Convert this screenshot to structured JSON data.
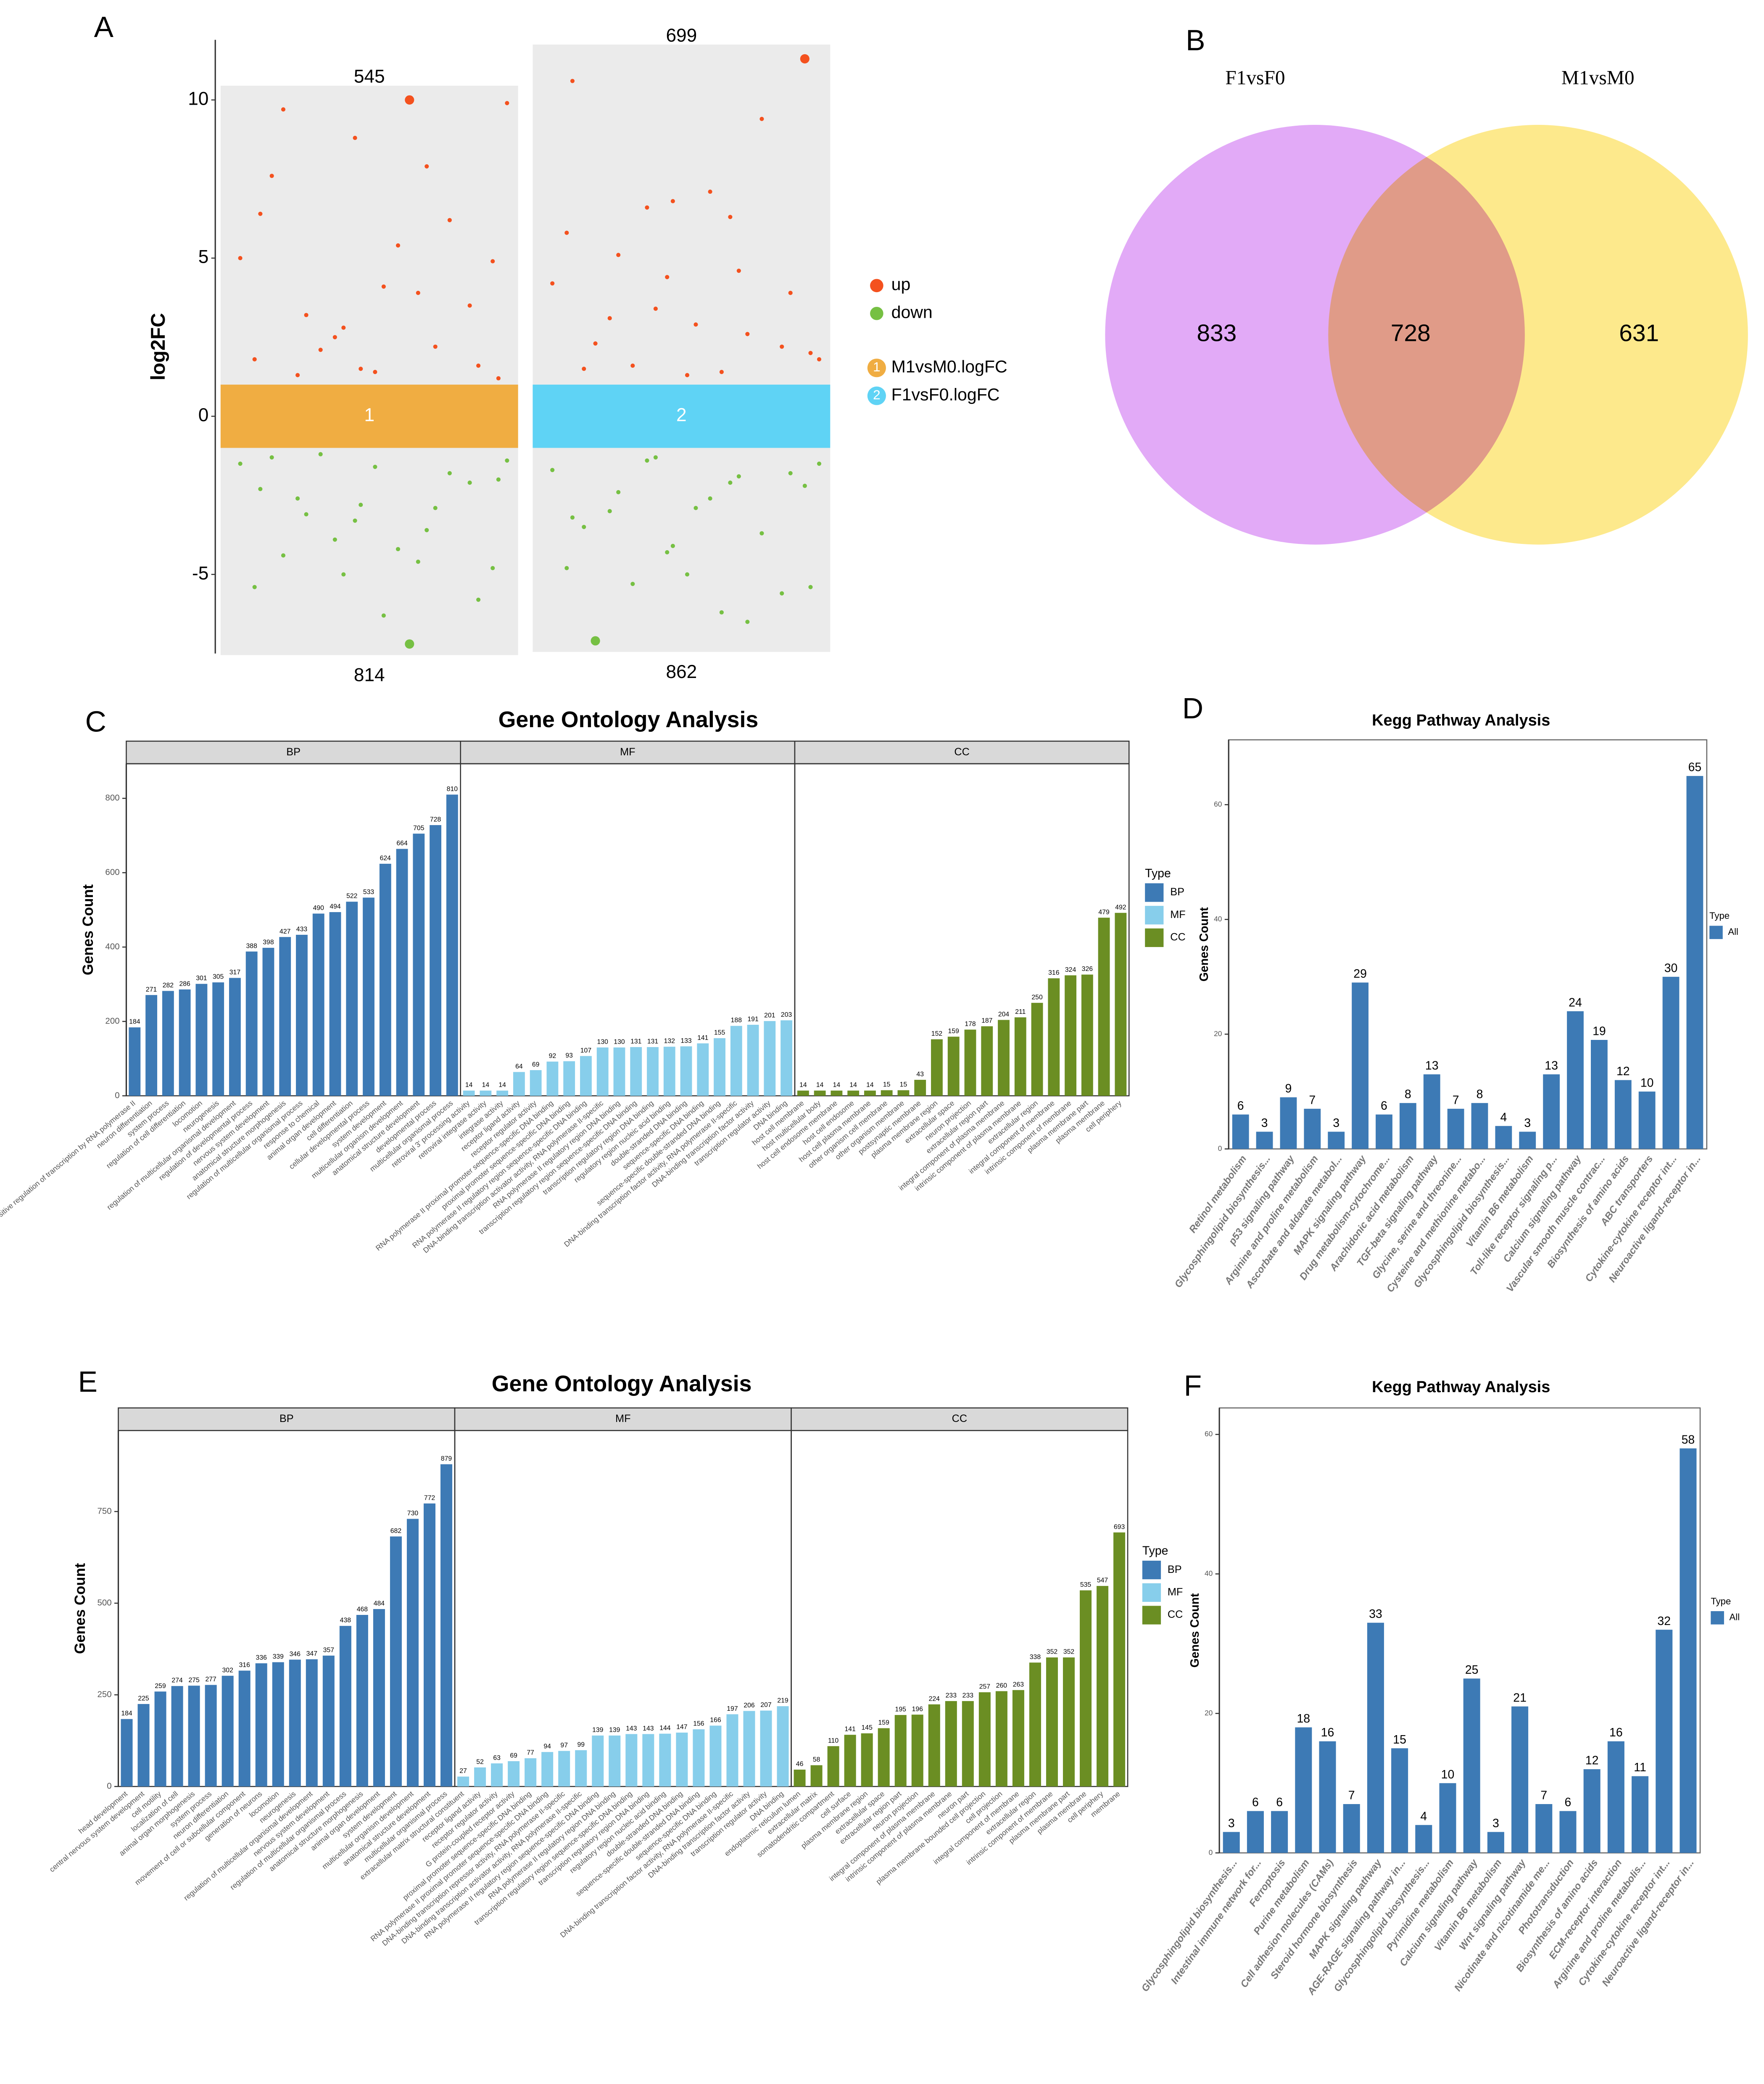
{
  "chart_data": [
    {
      "panel": "A",
      "type": "jitter",
      "ylabel": "log2FC",
      "ylim": [
        -7.5,
        11.9
      ],
      "yticks": [
        -5,
        0,
        5,
        10
      ],
      "band_range": [
        -1,
        1
      ],
      "legend": [
        {
          "name": "up",
          "color": "#f4511e"
        },
        {
          "name": "down",
          "color": "#76c043"
        }
      ],
      "groups": [
        {
          "name": "M1vsM0.logFC",
          "label": "1",
          "color": "#f0ad42",
          "up_count": 545,
          "down_count": 814,
          "x": [
            0.05,
            0.12,
            0.2,
            0.28,
            0.33,
            0.41,
            0.47,
            0.55,
            0.64,
            0.7,
            0.78,
            0.85,
            0.93,
            0.98,
            0.1,
            0.25,
            0.38,
            0.52,
            0.6,
            0.73,
            0.88,
            0.16,
            0.45,
            0.67,
            0.95
          ],
          "up": [
            5,
            6.4,
            9.7,
            3.2,
            2.1,
            2.8,
            1.5,
            4.1,
            10,
            7.9,
            6.2,
            3.5,
            4.9,
            9.9,
            1.8,
            1.3,
            2.5,
            1.4,
            5.4,
            2.2,
            1.6,
            7.6,
            8.8,
            3.9,
            1.2
          ],
          "down": [
            -1.5,
            -2.3,
            -4.4,
            -3.1,
            -1.2,
            -5,
            -2.8,
            -6.3,
            -7.2,
            -3.6,
            -1.8,
            -2.1,
            -4.8,
            -1.4,
            -5.4,
            -2.6,
            -3.9,
            -1.6,
            -4.2,
            -2.9,
            -5.8,
            -1.3,
            -3.3,
            -4.6,
            -2
          ]
        },
        {
          "name": "F1vsF0.logFC",
          "label": "2",
          "color": "#5fd3f5",
          "up_count": 699,
          "down_count": 862,
          "x": [
            0.05,
            0.12,
            0.2,
            0.28,
            0.33,
            0.41,
            0.47,
            0.55,
            0.64,
            0.7,
            0.78,
            0.85,
            0.93,
            0.98,
            0.1,
            0.25,
            0.38,
            0.52,
            0.6,
            0.73,
            0.88,
            0.16,
            0.45,
            0.67,
            0.95
          ],
          "up": [
            4.2,
            10.6,
            2.3,
            5.1,
            1.6,
            3.4,
            6.8,
            2.9,
            1.4,
            4.6,
            9.4,
            2.2,
            11.3,
            1.8,
            5.8,
            3.1,
            6.6,
            1.3,
            7.1,
            2.6,
            3.9,
            1.5,
            4.4,
            6.3,
            2
          ],
          "down": [
            -1.7,
            -3.2,
            -7.1,
            -2.4,
            -5.3,
            -1.3,
            -4.1,
            -2.9,
            -6.2,
            -1.9,
            -3.7,
            -5.6,
            -2.2,
            -1.5,
            -4.8,
            -3,
            -1.4,
            -5,
            -2.6,
            -6.5,
            -1.8,
            -3.5,
            -4.3,
            -2.1,
            -5.4
          ]
        }
      ]
    },
    {
      "panel": "B",
      "type": "venn",
      "sets": [
        {
          "name": "F1vsF0",
          "color": "#e2aaf7"
        },
        {
          "name": "M1vsM0",
          "color": "#fde98c"
        }
      ],
      "values": [
        833,
        728,
        631
      ]
    },
    {
      "panel": "C",
      "type": "faceted_bar",
      "title": "Gene Ontology Analysis",
      "ylabel": "Genes Count",
      "ylim": [
        0,
        893
      ],
      "yticks": [
        0,
        200,
        400,
        600,
        800
      ],
      "legend_title": "Type",
      "facets": [
        {
          "name": "BP",
          "color": "#3d7ab5",
          "categories": [
            "positive regulation of transcription by RNA polymerase II",
            "neuron differentiation",
            "system process",
            "regulation of cell differentiation",
            "locomotion",
            "neurogenesis",
            "regulation of multicellular organismal development",
            "regulation of developmental process",
            "nervous system development",
            "anatomical structure morphogenesis",
            "regulation of multicellular organismal process",
            "response to chemical",
            "animal organ development",
            "cell differentiation",
            "cellular developmental process",
            "system development",
            "multicellular organism development",
            "anatomical structure development",
            "developmental process",
            "multicellular organismal process"
          ],
          "values": [
            184,
            271,
            282,
            286,
            301,
            305,
            317,
            388,
            398,
            427,
            433,
            490,
            494,
            522,
            533,
            624,
            664,
            705,
            728,
            810
          ]
        },
        {
          "name": "MF",
          "color": "#87ceeb",
          "categories": [
            "retroviral 3' processing activity",
            "retroviral integrase activity",
            "integrase activity",
            "receptor ligand activity",
            "receptor regulator activity",
            "RNA polymerase II proximal promoter sequence-specific DNA binding",
            "proximal promoter sequence-specific DNA binding",
            "RNA polymerase II regulatory region sequence-specific DNA binding",
            "DNA-binding transcription activator activity, RNA polymerase II-specific",
            "RNA polymerase II regulatory region DNA binding",
            "transcription regulatory region sequence-specific DNA binding",
            "transcription regulatory region DNA binding",
            "regulatory region nucleic acid binding",
            "double-stranded DNA binding",
            "sequence-specific DNA binding",
            "sequence-specific double-stranded DNA binding",
            "DNA-binding transcription factor activity, RNA polymerase II-specific",
            "DNA-binding transcription factor activity",
            "transcription regulator activity",
            "DNA binding"
          ],
          "values": [
            14,
            14,
            14,
            64,
            69,
            92,
            93,
            107,
            130,
            130,
            131,
            131,
            132,
            133,
            141,
            155,
            188,
            191,
            201,
            203
          ]
        },
        {
          "name": "CC",
          "color": "#6b8e23",
          "categories": [
            "host cell membrane",
            "host multicellular body",
            "host cell endosome membrane",
            "host cell endosome",
            "host cell plasma membrane",
            "other organism cell membrane",
            "other organism membrane",
            "postsynaptic membrane",
            "plasma membrane region",
            "extracellular space",
            "neuron projection",
            "extracellular region part",
            "integral component of plasma membrane",
            "intrinsic component of plasma membrane",
            "extracellular region",
            "integral component of membrane",
            "intrinsic component of membrane",
            "plasma membrane part",
            "plasma membrane",
            "cell periphery"
          ],
          "values": [
            14,
            14,
            14,
            14,
            14,
            15,
            15,
            43,
            152,
            159,
            178,
            187,
            204,
            211,
            250,
            316,
            324,
            326,
            479,
            492
          ]
        }
      ]
    },
    {
      "panel": "D",
      "type": "bar",
      "title": "Kegg Pathway Analysis",
      "ylabel": "Genes Count",
      "ylim": [
        0,
        71.3
      ],
      "yticks": [
        0,
        20,
        40,
        60
      ],
      "legend_title": "Type",
      "categories": [
        "Retinol metabolism",
        "Glycosphingolipid biosynthesis...",
        "p53 signaling pathway",
        "Arginine and proline metabolism",
        "Ascorbate and aldarate metabol...",
        "MAPK signaling pathway",
        "Drug metabolism-cytochrome...",
        "Arachidonic acid metabolism",
        "TGF-beta signaling pathway",
        "Glycine, serine and threonine...",
        "Cysteine and methionine metabo...",
        "Glycosphingolipid biosynthesis...",
        "Vitamin B6 metabolism",
        "Toll-like receptor signaling p...",
        "Calcium signaling pathway",
        "Vascular smooth muscle contrac...",
        "Biosynthesis of amino acids",
        "ABC transporters",
        "Cytokine-cytokine receptor int...",
        "Neuroactive ligand-receptor in..."
      ],
      "series": [
        {
          "name": "All",
          "color": "#3d7ab5",
          "values": [
            6,
            3,
            9,
            7,
            3,
            29,
            6,
            8,
            13,
            7,
            8,
            4,
            3,
            13,
            24,
            19,
            12,
            10,
            30,
            65
          ]
        }
      ]
    },
    {
      "panel": "E",
      "type": "faceted_bar",
      "title": "Gene Ontology Analysis",
      "ylabel": "Genes Count",
      "ylim": [
        0,
        971
      ],
      "yticks": [
        0,
        250,
        500,
        750
      ],
      "legend_title": "Type",
      "facets": [
        {
          "name": "BP",
          "color": "#3d7ab5",
          "categories": [
            "head development",
            "central nervous system development",
            "cell motility",
            "localization of cell",
            "animal organ morphogenesis",
            "system process",
            "neuron differentiation",
            "movement of cell or subcellular component",
            "generation of neurons",
            "locomotion",
            "neurogenesis",
            "regulation of multicellular organismal development",
            "nervous system development",
            "regulation of multicellular organismal process",
            "anatomical structure morphogenesis",
            "animal organ development",
            "system development",
            "multicellular organism development",
            "anatomical structure development",
            "multicellular organismal process"
          ],
          "values": [
            184,
            225,
            259,
            274,
            275,
            277,
            302,
            316,
            336,
            339,
            346,
            347,
            357,
            438,
            468,
            484,
            682,
            730,
            772,
            879
          ]
        },
        {
          "name": "MF",
          "color": "#87ceeb",
          "categories": [
            "extracellular matrix structural constituent",
            "receptor ligand activity",
            "receptor regulator activity",
            "G protein-coupled receptor activity",
            "proximal promoter sequence-specific DNA binding",
            "RNA polymerase II proximal promoter sequence-specific DNA binding",
            "DNA-binding transcription repressor activity, RNA polymerase II-specific",
            "DNA-binding transcription activator activity, RNA polymerase II-specific",
            "RNA polymerase II regulatory region sequence-specific DNA binding",
            "RNA polymerase II regulatory region DNA binding",
            "transcription regulatory region sequence-specific DNA binding",
            "transcription regulatory region DNA binding",
            "regulatory region nucleic acid binding",
            "double-stranded DNA binding",
            "sequence-specific double-stranded DNA binding",
            "sequence-specific DNA binding",
            "DNA-binding transcription factor activity, RNA polymerase II-specific",
            "DNA-binding transcription factor activity",
            "transcription regulator activity",
            "DNA binding"
          ],
          "values": [
            27,
            52,
            63,
            69,
            77,
            94,
            97,
            99,
            139,
            139,
            143,
            143,
            144,
            147,
            156,
            166,
            197,
            206,
            207,
            219
          ]
        },
        {
          "name": "CC",
          "color": "#6b8e23",
          "categories": [
            "endoplasmic reticulum lumen",
            "extracellular matrix",
            "somatodendritic compartment",
            "cell surface",
            "plasma membrane region",
            "extracellular space",
            "extracellular region part",
            "neuron projection",
            "integral component of plasma membrane",
            "intrinsic component of plasma membrane",
            "neuron part",
            "plasma membrane bounded cell projection",
            "cell projection",
            "integral component of membrane",
            "extracellular region",
            "intrinsic component of membrane",
            "plasma membrane part",
            "plasma membrane",
            "cell periphery",
            "membrane"
          ],
          "values": [
            46,
            58,
            110,
            141,
            145,
            159,
            195,
            196,
            224,
            233,
            233,
            257,
            260,
            263,
            338,
            352,
            352,
            535,
            547,
            693
          ]
        }
      ]
    },
    {
      "panel": "F",
      "type": "bar",
      "title": "Kegg Pathway Analysis",
      "ylabel": "Genes Count",
      "ylim": [
        0,
        63.8
      ],
      "yticks": [
        0,
        20,
        40,
        60
      ],
      "legend_title": "Type",
      "categories": [
        "Glycosphingolipid biosynthesis...",
        "Intestinal immune network for...",
        "Ferroptosis",
        "Purine metabolism",
        "Cell adhesion molecules (CAMs)",
        "Steroid hormone biosynthesis",
        "MAPK signaling pathway",
        "AGE-RAGE signaling pathway in...",
        "Glycosphingolipid biosynthesis...",
        "Pyrimidine metabolism",
        "Calcium signaling pathway",
        "Vitamin B6 metabolism",
        "Wnt signaling pathway",
        "Nicotinate and nicotinamide me...",
        "Phototransduction",
        "Biosynthesis of amino acids",
        "ECM-receptor interaction",
        "Arginine and proline metabolis...",
        "Cytokine-cytokine receptor int...",
        "Neuroactive ligand-receptor in..."
      ],
      "series": [
        {
          "name": "All",
          "color": "#3d7ab5",
          "values": [
            3,
            6,
            6,
            18,
            16,
            7,
            33,
            15,
            4,
            10,
            25,
            3,
            21,
            7,
            6,
            12,
            16,
            11,
            32,
            58
          ]
        }
      ]
    }
  ]
}
